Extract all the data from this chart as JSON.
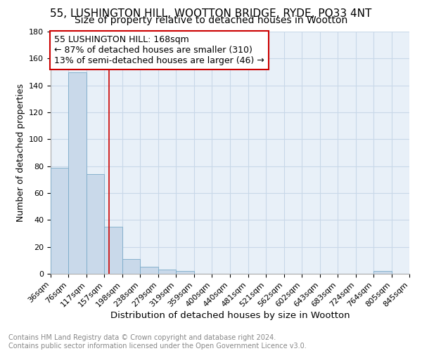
{
  "title": "55, LUSHINGTON HILL, WOOTTON BRIDGE, RYDE, PO33 4NT",
  "subtitle": "Size of property relative to detached houses in Wootton",
  "xlabel": "Distribution of detached houses by size in Wootton",
  "ylabel": "Number of detached properties",
  "bin_edges": [
    36,
    76,
    117,
    157,
    198,
    238,
    279,
    319,
    359,
    400,
    440,
    481,
    521,
    562,
    602,
    643,
    683,
    724,
    764,
    805,
    845
  ],
  "bar_heights": [
    79,
    150,
    74,
    35,
    11,
    5,
    3,
    2,
    0,
    0,
    0,
    0,
    0,
    0,
    0,
    0,
    0,
    0,
    2,
    0
  ],
  "bar_color": "#c9d9ea",
  "bar_edgecolor": "#7aaac8",
  "grid_color": "#c8d8e8",
  "bg_color": "#e8f0f8",
  "vline_x": 168,
  "vline_color": "#cc0000",
  "annotation_line1": "55 LUSHINGTON HILL: 168sqm",
  "annotation_line2": "← 87% of detached houses are smaller (310)",
  "annotation_line3": "13% of semi-detached houses are larger (46) →",
  "annotation_box_color": "#cc0000",
  "annotation_bg": "#ffffff",
  "ylim": [
    0,
    180
  ],
  "yticks": [
    0,
    20,
    40,
    60,
    80,
    100,
    120,
    140,
    160,
    180
  ],
  "footer_text": "Contains HM Land Registry data © Crown copyright and database right 2024.\nContains public sector information licensed under the Open Government Licence v3.0.",
  "title_fontsize": 11,
  "subtitle_fontsize": 10,
  "xlabel_fontsize": 9.5,
  "ylabel_fontsize": 9,
  "tick_fontsize": 8,
  "annotation_fontsize": 9,
  "footer_fontsize": 7
}
